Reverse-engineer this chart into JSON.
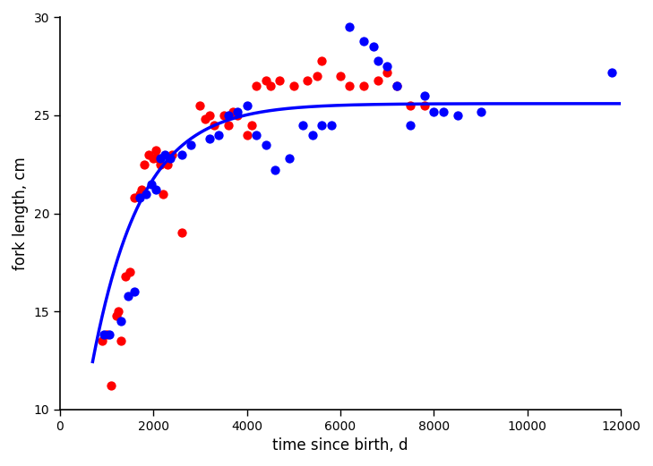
{
  "title": "",
  "xlabel": "time since birth, d",
  "ylabel": "fork length, cm",
  "xlim": [
    0,
    12000
  ],
  "ylim": [
    10,
    30
  ],
  "xticks": [
    0,
    2000,
    4000,
    6000,
    8000,
    10000,
    12000
  ],
  "yticks": [
    10,
    15,
    20,
    25,
    30
  ],
  "female_points": [
    [
      900,
      13.5
    ],
    [
      1000,
      13.8
    ],
    [
      1100,
      11.2
    ],
    [
      1200,
      14.8
    ],
    [
      1250,
      15.0
    ],
    [
      1300,
      13.5
    ],
    [
      1400,
      16.8
    ],
    [
      1500,
      17.0
    ],
    [
      1600,
      20.8
    ],
    [
      1700,
      21.0
    ],
    [
      1750,
      21.2
    ],
    [
      1800,
      22.5
    ],
    [
      1900,
      23.0
    ],
    [
      2000,
      22.8
    ],
    [
      2050,
      23.2
    ],
    [
      2100,
      22.8
    ],
    [
      2150,
      22.5
    ],
    [
      2200,
      21.0
    ],
    [
      2300,
      22.5
    ],
    [
      2400,
      23.0
    ],
    [
      2600,
      19.0
    ],
    [
      3000,
      25.5
    ],
    [
      3100,
      24.8
    ],
    [
      3200,
      25.0
    ],
    [
      3300,
      24.5
    ],
    [
      3500,
      25.0
    ],
    [
      3600,
      24.5
    ],
    [
      3700,
      25.2
    ],
    [
      3800,
      25.0
    ],
    [
      4000,
      24.0
    ],
    [
      4100,
      24.5
    ],
    [
      4200,
      26.5
    ],
    [
      4400,
      26.8
    ],
    [
      4500,
      26.5
    ],
    [
      4700,
      26.8
    ],
    [
      5000,
      26.5
    ],
    [
      5300,
      26.8
    ],
    [
      5500,
      27.0
    ],
    [
      5600,
      27.8
    ],
    [
      6000,
      27.0
    ],
    [
      6200,
      26.5
    ],
    [
      6500,
      26.5
    ],
    [
      6800,
      26.8
    ],
    [
      7000,
      27.2
    ],
    [
      7200,
      26.5
    ],
    [
      7500,
      25.5
    ],
    [
      7800,
      25.5
    ]
  ],
  "male_points": [
    [
      950,
      13.8
    ],
    [
      1050,
      13.8
    ],
    [
      1300,
      14.5
    ],
    [
      1450,
      15.8
    ],
    [
      1600,
      16.0
    ],
    [
      1700,
      20.8
    ],
    [
      1850,
      21.0
    ],
    [
      1950,
      21.5
    ],
    [
      2050,
      21.2
    ],
    [
      2150,
      22.8
    ],
    [
      2250,
      23.0
    ],
    [
      2350,
      22.8
    ],
    [
      2600,
      23.0
    ],
    [
      2800,
      23.5
    ],
    [
      3200,
      23.8
    ],
    [
      3400,
      24.0
    ],
    [
      3600,
      25.0
    ],
    [
      3800,
      25.2
    ],
    [
      4000,
      25.5
    ],
    [
      4200,
      24.0
    ],
    [
      4400,
      23.5
    ],
    [
      4600,
      22.2
    ],
    [
      4900,
      22.8
    ],
    [
      5200,
      24.5
    ],
    [
      5400,
      24.0
    ],
    [
      5600,
      24.5
    ],
    [
      5800,
      24.5
    ],
    [
      6200,
      29.5
    ],
    [
      6500,
      28.8
    ],
    [
      6700,
      28.5
    ],
    [
      6800,
      27.8
    ],
    [
      7000,
      27.5
    ],
    [
      7200,
      26.5
    ],
    [
      7500,
      24.5
    ],
    [
      7800,
      26.0
    ],
    [
      8000,
      25.2
    ],
    [
      8200,
      25.2
    ],
    [
      8500,
      25.0
    ],
    [
      9000,
      25.2
    ],
    [
      11800,
      27.2
    ]
  ],
  "vb_Linf": 25.6,
  "vb_K": 0.00095,
  "vb_t0": 0,
  "curve_color": "#0000FF",
  "female_color": "#FF0000",
  "male_color": "#0000FF",
  "curve_linewidth": 2.5,
  "marker_size": 55,
  "bg_color": "#FFFFFF"
}
